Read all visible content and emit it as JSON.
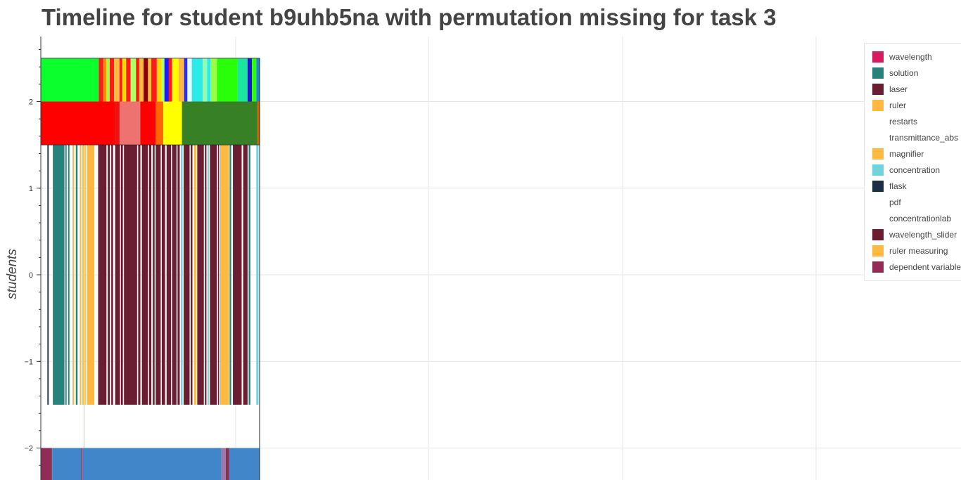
{
  "chart_data": {
    "type": "timeline",
    "title": "Timeline for student b9uhb5na with permutation missing for task 3",
    "xlabel": "",
    "ylabel": "students",
    "ylim": [
      -2.4,
      2.8
    ],
    "y_ticks": [
      2,
      1,
      0,
      -1,
      -2
    ],
    "y_tick_labels": [
      "2",
      "1",
      "0",
      "−1",
      "−2"
    ],
    "grid": true,
    "legend_position": "top-right",
    "legend": [
      {
        "label": "wavelength",
        "color": "#d81b60"
      },
      {
        "label": "solution",
        "color": "#26827a"
      },
      {
        "label": "laser",
        "color": "#6b1d31"
      },
      {
        "label": "ruler",
        "color": "#ffb940"
      },
      {
        "label": "restarts",
        "color": "#ffffff"
      },
      {
        "label": "transmittance_abs",
        "color": "#ffffff"
      },
      {
        "label": "magnifier",
        "color": "#ffb940"
      },
      {
        "label": "concentration",
        "color": "#6fd4de"
      },
      {
        "label": "flask",
        "color": "#1b2f45"
      },
      {
        "label": "pdf",
        "color": "#ffffff"
      },
      {
        "label": "concentrationlab",
        "color": "#ffffff"
      },
      {
        "label": "wavelength_slider",
        "color": "#6b1d31"
      },
      {
        "label": "ruler measuring",
        "color": "#ffb940"
      },
      {
        "label": "dependent variable",
        "color": "#922b55"
      }
    ],
    "tracks": [
      {
        "name": "top-state",
        "y_range": [
          2.0,
          2.5
        ],
        "segments": [
          {
            "start": 0.0,
            "end": 0.265,
            "color": "#0aff2d"
          },
          {
            "start": 0.265,
            "end": 0.285,
            "color": "#ff1a1a"
          },
          {
            "start": 0.285,
            "end": 0.3,
            "color": "#ff8c00"
          },
          {
            "start": 0.3,
            "end": 0.315,
            "color": "#9bff45"
          },
          {
            "start": 0.315,
            "end": 0.335,
            "color": "#ff1a1a"
          },
          {
            "start": 0.335,
            "end": 0.36,
            "color": "#ffb940"
          },
          {
            "start": 0.36,
            "end": 0.372,
            "color": "#ff1a1a"
          },
          {
            "start": 0.372,
            "end": 0.39,
            "color": "#ffd700"
          },
          {
            "start": 0.39,
            "end": 0.41,
            "color": "#ff1a1a"
          },
          {
            "start": 0.41,
            "end": 0.435,
            "color": "#b3ff66"
          },
          {
            "start": 0.435,
            "end": 0.45,
            "color": "#ff1a1a"
          },
          {
            "start": 0.45,
            "end": 0.47,
            "color": "#ffb940"
          },
          {
            "start": 0.47,
            "end": 0.49,
            "color": "#8b0000"
          },
          {
            "start": 0.49,
            "end": 0.505,
            "color": "#ffb940"
          },
          {
            "start": 0.505,
            "end": 0.53,
            "color": "#ff1a1a"
          },
          {
            "start": 0.53,
            "end": 0.55,
            "color": "#ffd700"
          },
          {
            "start": 0.55,
            "end": 0.565,
            "color": "#b3ff66"
          },
          {
            "start": 0.565,
            "end": 0.585,
            "color": "#1a1aff"
          },
          {
            "start": 0.585,
            "end": 0.6,
            "color": "#ff1a1a"
          },
          {
            "start": 0.6,
            "end": 0.63,
            "color": "#ffff00"
          },
          {
            "start": 0.63,
            "end": 0.655,
            "color": "#ffb940"
          },
          {
            "start": 0.655,
            "end": 0.67,
            "color": "#2a2aff"
          },
          {
            "start": 0.67,
            "end": 0.69,
            "color": "#e0ffff"
          },
          {
            "start": 0.69,
            "end": 0.74,
            "color": "#2aeaea"
          },
          {
            "start": 0.74,
            "end": 0.76,
            "color": "#8fffaf"
          },
          {
            "start": 0.76,
            "end": 0.775,
            "color": "#2aeaea"
          },
          {
            "start": 0.775,
            "end": 0.805,
            "color": "#9bff45"
          },
          {
            "start": 0.805,
            "end": 0.9,
            "color": "#2aff0a"
          },
          {
            "start": 0.9,
            "end": 0.945,
            "color": "#1ae6a0"
          },
          {
            "start": 0.945,
            "end": 0.965,
            "color": "#1a1acc"
          },
          {
            "start": 0.965,
            "end": 0.985,
            "color": "#2aff0a"
          },
          {
            "start": 0.985,
            "end": 1.0,
            "color": "#1a8acc"
          }
        ]
      },
      {
        "name": "phase",
        "y_range": [
          1.5,
          2.0
        ],
        "segments": [
          {
            "start": 0.0,
            "end": 0.34,
            "color": "#ff0000"
          },
          {
            "start": 0.34,
            "end": 0.36,
            "color": "#f01010"
          },
          {
            "start": 0.36,
            "end": 0.455,
            "color": "#ee7370"
          },
          {
            "start": 0.455,
            "end": 0.525,
            "color": "#ff0000"
          },
          {
            "start": 0.525,
            "end": 0.56,
            "color": "#ff6600"
          },
          {
            "start": 0.56,
            "end": 0.645,
            "color": "#ffff00"
          },
          {
            "start": 0.645,
            "end": 0.99,
            "color": "#388025"
          },
          {
            "start": 0.99,
            "end": 1.0,
            "color": "#cc6600"
          }
        ]
      },
      {
        "name": "actions",
        "y_range": [
          -1.5,
          1.5
        ],
        "segments": [
          {
            "start": 0.03,
            "end": 0.036,
            "color": "#1b2f45"
          },
          {
            "start": 0.055,
            "end": 0.108,
            "color": "#26827a"
          },
          {
            "start": 0.112,
            "end": 0.118,
            "color": "#26827a"
          },
          {
            "start": 0.125,
            "end": 0.131,
            "color": "#26827a"
          },
          {
            "start": 0.145,
            "end": 0.152,
            "color": "#ffb940"
          },
          {
            "start": 0.16,
            "end": 0.168,
            "color": "#26827a"
          },
          {
            "start": 0.178,
            "end": 0.185,
            "color": "#ffb940"
          },
          {
            "start": 0.19,
            "end": 0.197,
            "color": "#ffb940"
          },
          {
            "start": 0.2,
            "end": 0.205,
            "color": "#ffb940"
          },
          {
            "start": 0.21,
            "end": 0.245,
            "color": "#ffb940"
          },
          {
            "start": 0.262,
            "end": 0.3,
            "color": "#6b1d31"
          },
          {
            "start": 0.306,
            "end": 0.316,
            "color": "#6b1d31"
          },
          {
            "start": 0.322,
            "end": 0.33,
            "color": "#6b1d31"
          },
          {
            "start": 0.34,
            "end": 0.362,
            "color": "#6b1d31"
          },
          {
            "start": 0.366,
            "end": 0.375,
            "color": "#6b1d31"
          },
          {
            "start": 0.38,
            "end": 0.44,
            "color": "#6b1d31"
          },
          {
            "start": 0.445,
            "end": 0.455,
            "color": "#6b1d31"
          },
          {
            "start": 0.462,
            "end": 0.49,
            "color": "#6b1d31"
          },
          {
            "start": 0.495,
            "end": 0.505,
            "color": "#6b1d31"
          },
          {
            "start": 0.512,
            "end": 0.52,
            "color": "#6b1d31"
          },
          {
            "start": 0.525,
            "end": 0.548,
            "color": "#6b1d31"
          },
          {
            "start": 0.553,
            "end": 0.568,
            "color": "#6b1d31"
          },
          {
            "start": 0.575,
            "end": 0.595,
            "color": "#6b1d31"
          },
          {
            "start": 0.6,
            "end": 0.62,
            "color": "#6b1d31"
          },
          {
            "start": 0.625,
            "end": 0.635,
            "color": "#6b1d31"
          },
          {
            "start": 0.64,
            "end": 0.648,
            "color": "#6fd4de"
          },
          {
            "start": 0.653,
            "end": 0.68,
            "color": "#6b1d31"
          },
          {
            "start": 0.685,
            "end": 0.693,
            "color": "#6b1d31"
          },
          {
            "start": 0.7,
            "end": 0.71,
            "color": "#ffb940"
          },
          {
            "start": 0.715,
            "end": 0.745,
            "color": "#6b1d31"
          },
          {
            "start": 0.75,
            "end": 0.757,
            "color": "#6b1d31"
          },
          {
            "start": 0.762,
            "end": 0.768,
            "color": "#6fd4de"
          },
          {
            "start": 0.773,
            "end": 0.805,
            "color": "#6b1d31"
          },
          {
            "start": 0.81,
            "end": 0.815,
            "color": "#6b1d31"
          },
          {
            "start": 0.82,
            "end": 0.86,
            "color": "#ffb940"
          },
          {
            "start": 0.863,
            "end": 0.87,
            "color": "#26827a"
          },
          {
            "start": 0.878,
            "end": 0.918,
            "color": "#6b1d31"
          },
          {
            "start": 0.925,
            "end": 0.945,
            "color": "#6b1d31"
          },
          {
            "start": 0.95,
            "end": 0.958,
            "color": "#26827a"
          },
          {
            "start": 0.985,
            "end": 0.995,
            "color": "#6fd4de"
          }
        ]
      },
      {
        "name": "ruler-trace",
        "y_range": [
          -2.0,
          -1.5
        ],
        "segments": [
          {
            "start": 0.196,
            "end": 0.199,
            "color": "#ffb940"
          }
        ]
      },
      {
        "name": "bottom",
        "y_range": [
          -2.4,
          -2.0
        ],
        "segments": [
          {
            "start": 0.0,
            "end": 0.048,
            "color": "#922b55"
          },
          {
            "start": 0.048,
            "end": 0.052,
            "color": "#9c3a60"
          },
          {
            "start": 0.052,
            "end": 0.185,
            "color": "#4186c8"
          },
          {
            "start": 0.185,
            "end": 0.19,
            "color": "#9c3a60"
          },
          {
            "start": 0.19,
            "end": 0.825,
            "color": "#4186c8"
          },
          {
            "start": 0.825,
            "end": 0.845,
            "color": "#9a7aa8"
          },
          {
            "start": 0.845,
            "end": 0.86,
            "color": "#922b55"
          },
          {
            "start": 0.86,
            "end": 1.0,
            "color": "#4186c8"
          }
        ]
      }
    ]
  }
}
